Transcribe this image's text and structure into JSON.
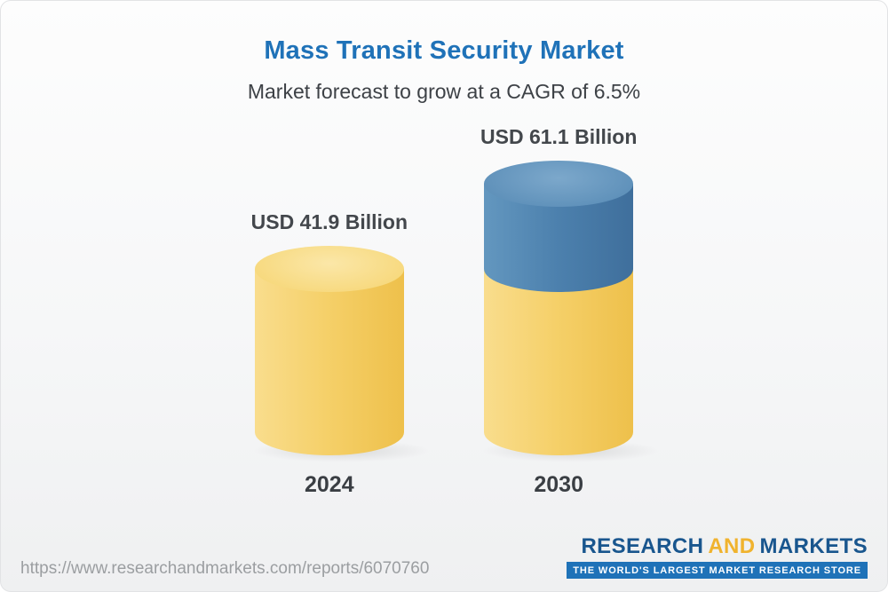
{
  "title": "Mass Transit Security Market",
  "subtitle": "Market forecast to grow at a CAGR of 6.5%",
  "chart_data": {
    "type": "bar",
    "bar_style": "3d-cylinder",
    "categories": [
      "2024",
      "2030"
    ],
    "values": [
      41.9,
      61.1
    ],
    "value_labels": [
      "USD 41.9 Billion",
      "USD 61.1 Billion"
    ],
    "unit": "USD Billion",
    "cagr": "6.5%",
    "title": "Mass Transit Security Market",
    "subtitle": "Market forecast to grow at a CAGR of 6.5%",
    "colors": {
      "base_segment": "#F5D069",
      "growth_segment": "#4C80AD"
    },
    "legend": "none",
    "grid": false,
    "notes": "2030 cylinder shows base value in yellow with growth portion above 41.9 in blue"
  },
  "footer": {
    "url": "https://www.researchandmarkets.com/reports/6070760",
    "logo": {
      "part1": "RESEARCH",
      "part2": "AND",
      "part3": "MARKETS",
      "tagline": "THE WORLD'S LARGEST MARKET RESEARCH STORE",
      "brand_blue": "#19568E",
      "brand_yellow": "#F0B32E"
    }
  }
}
